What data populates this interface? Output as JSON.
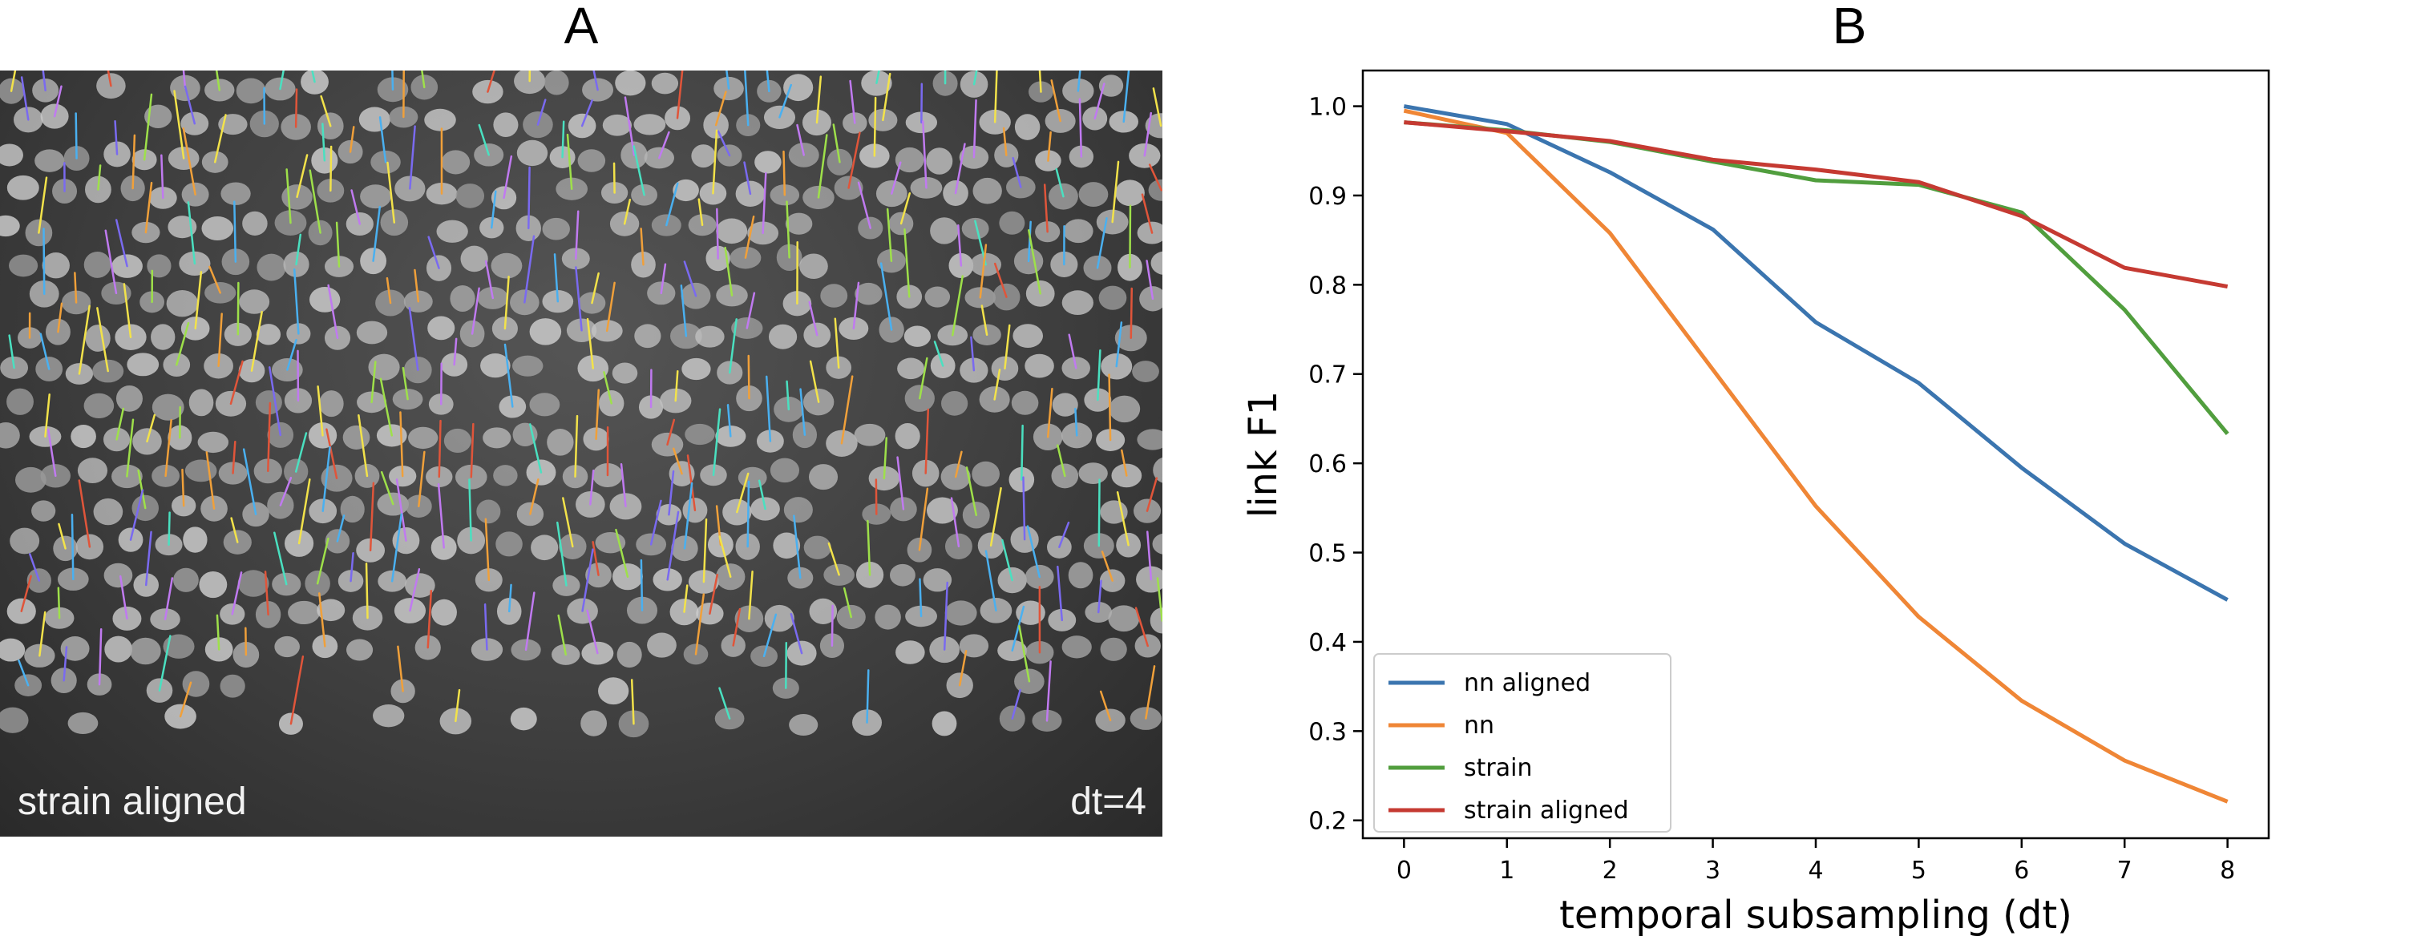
{
  "panel_a": {
    "label": "A",
    "caption_left": "strain aligned",
    "caption_right": "dt=4"
  },
  "panel_b": {
    "label": "B"
  },
  "chart_data": {
    "type": "line",
    "title": "",
    "xlabel": "temporal subsampling (dt)",
    "ylabel": "link F1",
    "x": [
      0,
      1,
      2,
      3,
      4,
      5,
      6,
      7,
      8
    ],
    "xlim": [
      -0.4,
      8.4
    ],
    "ylim": [
      0.18,
      1.04
    ],
    "xticks": [
      0,
      1,
      2,
      3,
      4,
      5,
      6,
      7,
      8
    ],
    "yticks": [
      0.2,
      0.3,
      0.4,
      0.5,
      0.6,
      0.7,
      0.8,
      0.9,
      1.0
    ],
    "ytick_labels": [
      "0.2",
      "0.3",
      "0.4",
      "0.5",
      "0.6",
      "0.7",
      "0.8",
      "0.9",
      "1.0"
    ],
    "grid": false,
    "legend_position": "bottom-left",
    "series": [
      {
        "name": "nn aligned",
        "color": "#3b75af",
        "values": [
          1.0,
          0.98,
          0.926,
          0.862,
          0.758,
          0.69,
          0.595,
          0.51,
          0.447
        ]
      },
      {
        "name": "nn",
        "color": "#ef8636",
        "values": [
          0.995,
          0.97,
          0.858,
          0.705,
          0.552,
          0.428,
          0.334,
          0.267,
          0.221
        ]
      },
      {
        "name": "strain",
        "color": "#519e3e",
        "values": [
          0.982,
          0.973,
          0.96,
          0.938,
          0.917,
          0.912,
          0.881,
          0.772,
          0.633
        ]
      },
      {
        "name": "strain aligned",
        "color": "#c53a32",
        "values": [
          0.982,
          0.972,
          0.961,
          0.94,
          0.929,
          0.915,
          0.877,
          0.819,
          0.798
        ]
      }
    ]
  }
}
